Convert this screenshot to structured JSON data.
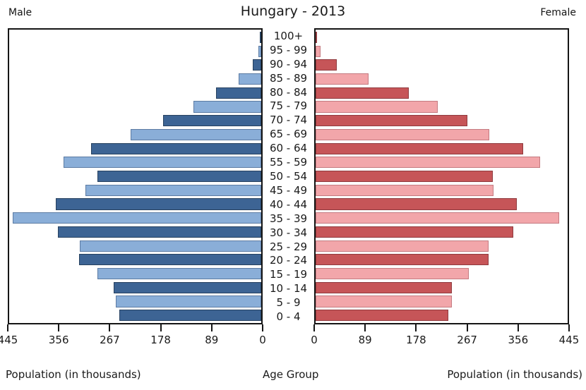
{
  "header": {
    "male_label": "Male",
    "female_label": "Female"
  },
  "footer": {
    "population_label": "Population (in thousands)",
    "age_group_label": "Age Group"
  },
  "chart_data": {
    "type": "bar",
    "variant": "population_pyramid",
    "title": "Hungary - 2013",
    "left_side_label": "Male",
    "right_side_label": "Female",
    "xlabel": "Population (in thousands)",
    "center_axis_label": "Age Group",
    "axis_max": 445,
    "male_axis_ticks": [
      445,
      356,
      267,
      178,
      89,
      0
    ],
    "female_axis_ticks": [
      0,
      89,
      178,
      267,
      356,
      445
    ],
    "category_order": "top-to-bottom",
    "categories": [
      "100+",
      "95 - 99",
      "90 - 94",
      "85 - 89",
      "80 - 84",
      "75 - 79",
      "70 - 74",
      "65 - 69",
      "60 - 64",
      "55 - 59",
      "50 - 54",
      "45 - 49",
      "40 - 44",
      "35 - 39",
      "30 - 34",
      "25 - 29",
      "20 - 24",
      "15 - 19",
      "10 - 14",
      "5 - 9",
      "0 - 4"
    ],
    "series": [
      {
        "name": "Male",
        "side": "left",
        "values": [
          1,
          5,
          15,
          40,
          80,
          120,
          173,
          230,
          300,
          349,
          289,
          310,
          363,
          439,
          359,
          320,
          321,
          289,
          260,
          257,
          250
        ]
      },
      {
        "name": "Female",
        "side": "right",
        "values": [
          3,
          9,
          37,
          93,
          164,
          216,
          268,
          307,
          367,
          397,
          313,
          314,
          355,
          430,
          349,
          306,
          306,
          270,
          240,
          240,
          234
        ]
      }
    ],
    "colors": {
      "male_dark": "#3d6494",
      "male_dark_edge": "#27415f",
      "male_light": "#8aaed8",
      "male_light_edge": "#5c7ba3",
      "female_dark": "#c65558",
      "female_dark_edge": "#8f3a3e",
      "female_light": "#f2a6aa",
      "female_light_edge": "#c47a80",
      "frame": "#151515"
    }
  }
}
